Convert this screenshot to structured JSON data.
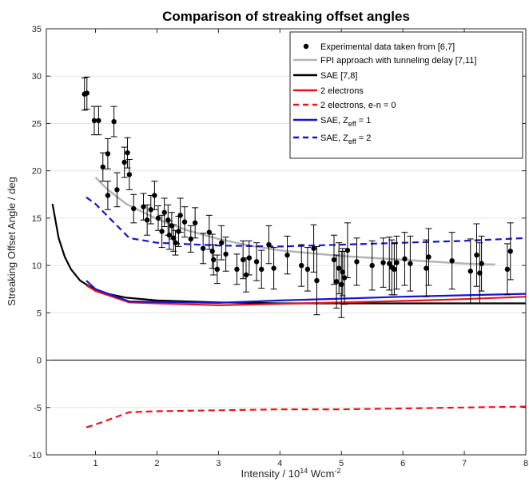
{
  "chart_data": {
    "type": "line",
    "title": "Comparison of streaking offset angles",
    "xlabel": {
      "base": "Intensity / 10",
      "sup": "14",
      "unit": " Wcm",
      "unit_sup": "-2"
    },
    "ylabel": "Streaking Offset Angle / deg",
    "xlim": [
      0.2,
      8
    ],
    "ylim": [
      -10,
      35
    ],
    "xticks": [
      1,
      2,
      3,
      4,
      5,
      6,
      7,
      8
    ],
    "yticks": [
      -10,
      -5,
      0,
      5,
      10,
      15,
      20,
      25,
      30,
      35
    ],
    "grid": "horizontal",
    "legend_position": "top-right",
    "legend": [
      {
        "id": "exp",
        "label": "Experimental data taken from [6,7]",
        "kind": "marker",
        "color": "#000000"
      },
      {
        "id": "fpi",
        "label": "FPI approach with tunneling delay [7,11]",
        "kind": "line",
        "color": "#b4b4b4",
        "dash": false
      },
      {
        "id": "sae78",
        "label": "SAE [7,8]",
        "kind": "line",
        "color": "#000000",
        "dash": false
      },
      {
        "id": "two_e",
        "label": "2 electrons",
        "kind": "line",
        "color": "#e8141b",
        "dash": false
      },
      {
        "id": "two_e_en0",
        "label": "2 electrons, e-n = 0",
        "kind": "line",
        "color": "#e8141b",
        "dash": true
      },
      {
        "id": "sae_z1",
        "label": "SAE, Z",
        "sub": "eff",
        "suffix": " = 1",
        "kind": "line",
        "color": "#1414d2",
        "dash": false
      },
      {
        "id": "sae_z2",
        "label": "SAE, Z",
        "sub": "eff",
        "suffix": " = 2",
        "kind": "line",
        "color": "#1414d2",
        "dash": true
      }
    ],
    "experimental": [
      {
        "x": 0.82,
        "y": 28.1,
        "err": 1.7
      },
      {
        "x": 0.86,
        "y": 28.2,
        "err": 1.7
      },
      {
        "x": 0.98,
        "y": 25.3,
        "err": 1.5
      },
      {
        "x": 1.05,
        "y": 25.3,
        "err": 1.5
      },
      {
        "x": 1.3,
        "y": 25.2,
        "err": 1.6
      },
      {
        "x": 1.12,
        "y": 20.4,
        "err": 1.5
      },
      {
        "x": 1.2,
        "y": 21.8,
        "err": 1.6
      },
      {
        "x": 1.2,
        "y": 17.4,
        "err": 1.5
      },
      {
        "x": 1.35,
        "y": 18.0,
        "err": 1.8
      },
      {
        "x": 1.47,
        "y": 20.9,
        "err": 1.6
      },
      {
        "x": 1.52,
        "y": 21.9,
        "err": 1.6
      },
      {
        "x": 1.55,
        "y": 19.6,
        "err": 1.6
      },
      {
        "x": 1.62,
        "y": 16.0,
        "err": 1.5
      },
      {
        "x": 1.78,
        "y": 16.2,
        "err": 1.4
      },
      {
        "x": 1.84,
        "y": 14.8,
        "err": 1.6
      },
      {
        "x": 1.9,
        "y": 15.9,
        "err": 1.5
      },
      {
        "x": 1.96,
        "y": 17.4,
        "err": 1.5
      },
      {
        "x": 2.02,
        "y": 15.0,
        "err": 1.3
      },
      {
        "x": 2.08,
        "y": 13.6,
        "err": 1.7
      },
      {
        "x": 2.12,
        "y": 15.6,
        "err": 1.5
      },
      {
        "x": 2.18,
        "y": 14.8,
        "err": 1.6
      },
      {
        "x": 2.2,
        "y": 13.2,
        "err": 1.5
      },
      {
        "x": 2.24,
        "y": 14.2,
        "err": 1.4
      },
      {
        "x": 2.27,
        "y": 12.9,
        "err": 1.4
      },
      {
        "x": 2.3,
        "y": 12.4,
        "err": 1.3
      },
      {
        "x": 2.35,
        "y": 13.6,
        "err": 1.6
      },
      {
        "x": 2.38,
        "y": 15.3,
        "err": 1.8
      },
      {
        "x": 2.45,
        "y": 14.6,
        "err": 1.6
      },
      {
        "x": 2.55,
        "y": 12.8,
        "err": 1.4
      },
      {
        "x": 2.62,
        "y": 14.5,
        "err": 1.6
      },
      {
        "x": 2.75,
        "y": 11.8,
        "err": 1.6
      },
      {
        "x": 2.85,
        "y": 13.5,
        "err": 1.8
      },
      {
        "x": 2.9,
        "y": 11.5,
        "err": 1.8
      },
      {
        "x": 2.92,
        "y": 10.6,
        "err": 1.6
      },
      {
        "x": 2.98,
        "y": 9.6,
        "err": 1.5
      },
      {
        "x": 3.05,
        "y": 12.4,
        "err": 1.8
      },
      {
        "x": 3.12,
        "y": 11.2,
        "err": 1.8
      },
      {
        "x": 3.3,
        "y": 9.6,
        "err": 1.6
      },
      {
        "x": 3.4,
        "y": 10.6,
        "err": 2.0
      },
      {
        "x": 3.45,
        "y": 9.0,
        "err": 1.8
      },
      {
        "x": 3.5,
        "y": 10.8,
        "err": 1.8
      },
      {
        "x": 3.62,
        "y": 10.4,
        "err": 2.0
      },
      {
        "x": 3.7,
        "y": 9.6,
        "err": 2.0
      },
      {
        "x": 3.82,
        "y": 12.2,
        "err": 2.0
      },
      {
        "x": 3.9,
        "y": 9.7,
        "err": 2.2
      },
      {
        "x": 4.12,
        "y": 11.1,
        "err": 2.0
      },
      {
        "x": 4.35,
        "y": 10.0,
        "err": 2.2
      },
      {
        "x": 4.45,
        "y": 9.6,
        "err": 2.3
      },
      {
        "x": 4.55,
        "y": 11.8,
        "err": 2.5
      },
      {
        "x": 4.6,
        "y": 8.4,
        "err": 3.6
      },
      {
        "x": 4.88,
        "y": 10.6,
        "err": 2.6
      },
      {
        "x": 4.92,
        "y": 8.3,
        "err": 2.8
      },
      {
        "x": 4.96,
        "y": 9.7,
        "err": 2.7
      },
      {
        "x": 5.0,
        "y": 8.0,
        "err": 3.5
      },
      {
        "x": 5.02,
        "y": 9.3,
        "err": 2.5
      },
      {
        "x": 5.05,
        "y": 8.7,
        "err": 2.8
      },
      {
        "x": 5.1,
        "y": 11.6,
        "err": 2.9
      },
      {
        "x": 5.25,
        "y": 10.4,
        "err": 2.5
      },
      {
        "x": 5.5,
        "y": 10.0,
        "err": 2.6
      },
      {
        "x": 5.68,
        "y": 10.3,
        "err": 2.6
      },
      {
        "x": 5.78,
        "y": 10.2,
        "err": 2.8
      },
      {
        "x": 5.82,
        "y": 9.8,
        "err": 2.9
      },
      {
        "x": 5.86,
        "y": 9.6,
        "err": 2.7
      },
      {
        "x": 5.9,
        "y": 10.3,
        "err": 2.8
      },
      {
        "x": 6.03,
        "y": 10.7,
        "err": 2.8
      },
      {
        "x": 6.12,
        "y": 10.2,
        "err": 2.9
      },
      {
        "x": 6.38,
        "y": 9.7,
        "err": 3.0
      },
      {
        "x": 6.42,
        "y": 10.9,
        "err": 3.0
      },
      {
        "x": 6.8,
        "y": 10.5,
        "err": 3.0
      },
      {
        "x": 7.1,
        "y": 9.4,
        "err": 3.4
      },
      {
        "x": 7.2,
        "y": 11.1,
        "err": 3.3
      },
      {
        "x": 7.25,
        "y": 9.2,
        "err": 3.2
      },
      {
        "x": 7.28,
        "y": 10.2,
        "err": 2.9
      },
      {
        "x": 7.7,
        "y": 9.6,
        "err": 2.7
      },
      {
        "x": 7.75,
        "y": 11.5,
        "err": 3.0
      }
    ],
    "series": [
      {
        "id": "fpi",
        "x": [
          1.0,
          1.2,
          1.5,
          2.0,
          2.5,
          3.0,
          3.5,
          4.0,
          4.5,
          5.0,
          5.5,
          6.0,
          6.5,
          7.0,
          7.5
        ],
        "y": [
          19.3,
          18.0,
          16.5,
          14.9,
          13.7,
          12.8,
          12.1,
          11.6,
          11.3,
          11.0,
          10.8,
          10.6,
          10.4,
          10.2,
          10.1
        ]
      },
      {
        "id": "sae78",
        "x": [
          0.3,
          0.4,
          0.5,
          0.6,
          0.75,
          0.9,
          1.0,
          1.2,
          1.5,
          2.0,
          3.0,
          4.0,
          5.0,
          6.0,
          7.0,
          8.0
        ],
        "y": [
          16.5,
          12.9,
          10.9,
          9.6,
          8.4,
          7.8,
          7.4,
          7.0,
          6.6,
          6.3,
          6.1,
          6.0,
          6.0,
          6.0,
          6.0,
          6.0
        ]
      },
      {
        "id": "two_e",
        "x": [
          0.85,
          1.0,
          1.55,
          2.0,
          3.0,
          4.0,
          5.0,
          6.0,
          7.0,
          8.0
        ],
        "y": [
          7.9,
          7.3,
          6.1,
          6.0,
          5.8,
          5.95,
          6.1,
          6.25,
          6.45,
          6.7
        ]
      },
      {
        "id": "two_e_en0",
        "x": [
          0.85,
          1.0,
          1.55,
          2.0,
          3.0,
          4.0,
          5.0,
          6.0,
          7.0,
          8.0
        ],
        "y": [
          -7.1,
          -6.8,
          -5.5,
          -5.4,
          -5.3,
          -5.2,
          -5.2,
          -5.1,
          -5.0,
          -4.9
        ]
      },
      {
        "id": "sae_z1",
        "x": [
          0.85,
          1.0,
          1.55,
          2.0,
          3.0,
          4.0,
          5.0,
          6.0,
          7.0,
          8.0
        ],
        "y": [
          8.4,
          7.5,
          6.2,
          6.15,
          6.05,
          6.3,
          6.5,
          6.7,
          6.85,
          7.0
        ]
      },
      {
        "id": "sae_z2",
        "x": [
          0.85,
          1.0,
          1.55,
          2.0,
          3.0,
          4.0,
          5.0,
          6.0,
          7.0,
          8.0
        ],
        "y": [
          17.2,
          16.5,
          12.9,
          12.4,
          12.1,
          12.0,
          12.2,
          12.4,
          12.6,
          12.9
        ]
      }
    ]
  }
}
